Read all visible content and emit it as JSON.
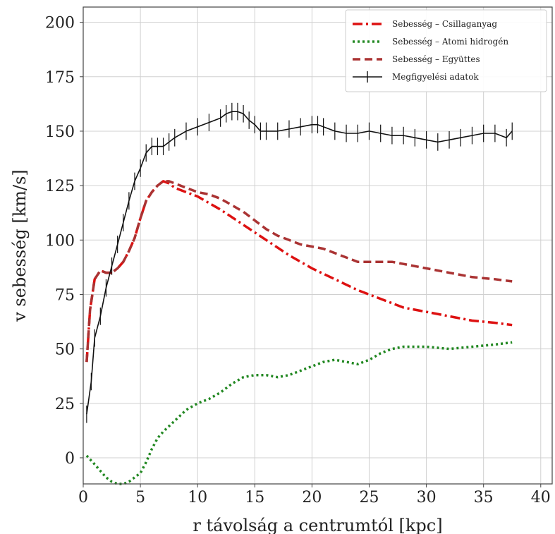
{
  "chart_data": {
    "type": "line",
    "title": "",
    "xlabel": "r távolság a centrumtól [kpc]",
    "ylabel": "v sebesség [km/s]",
    "xlim": [
      0,
      41
    ],
    "ylim": [
      -12,
      207
    ],
    "xticks": [
      0,
      5,
      10,
      15,
      20,
      25,
      30,
      35,
      40
    ],
    "yticks": [
      0,
      25,
      50,
      75,
      100,
      125,
      150,
      175,
      200
    ],
    "grid": true,
    "legend_position": "top-right",
    "series": [
      {
        "name": "Sebesség – Csillaganyag",
        "color": "#dd1111",
        "style": "dashdot",
        "x": [
          0.3,
          0.6,
          1.0,
          1.5,
          2.0,
          2.5,
          3.0,
          3.5,
          4.0,
          4.5,
          5.0,
          5.5,
          6.0,
          6.5,
          7.0,
          7.5,
          8.0,
          9.0,
          10.0,
          11.0,
          12.0,
          14.0,
          16.0,
          18.0,
          20.0,
          22.0,
          24.0,
          26.0,
          28.0,
          30.0,
          32.0,
          34.0,
          36.0,
          37.5
        ],
        "y": [
          44,
          68,
          82,
          86,
          85,
          85,
          87,
          90,
          95,
          101,
          110,
          118,
          122,
          125,
          127,
          126,
          124,
          122,
          120,
          117,
          114,
          107,
          100,
          93,
          87,
          82,
          77,
          73,
          69,
          67,
          65,
          63,
          62,
          61
        ]
      },
      {
        "name": "Sebesség – Atomi hidrogén",
        "color": "#228822",
        "style": "dotted",
        "x": [
          0.3,
          1.0,
          1.5,
          2.0,
          2.5,
          3.0,
          3.5,
          4.0,
          4.5,
          5.0,
          5.5,
          6.0,
          6.5,
          7.0,
          8.0,
          9.0,
          10.0,
          11.0,
          12.0,
          13.0,
          14.0,
          15.0,
          16.0,
          17.0,
          18.0,
          19.0,
          20.0,
          21.0,
          22.0,
          23.0,
          24.0,
          25.0,
          26.0,
          27.0,
          28.0,
          30.0,
          32.0,
          34.0,
          36.0,
          37.5
        ],
        "y": [
          1,
          -3,
          -6,
          -9,
          -11,
          -12,
          -12,
          -11,
          -9,
          -7,
          -2,
          4,
          9,
          12,
          17,
          22,
          25,
          27,
          30,
          34,
          37,
          38,
          38,
          37,
          38,
          40,
          42,
          44,
          45,
          44,
          43,
          45,
          48,
          50,
          51,
          51,
          50,
          51,
          52,
          53
        ]
      },
      {
        "name": "Sebesség – Együttes",
        "color": "#aa3333",
        "style": "dashed",
        "x": [
          0.3,
          0.6,
          1.0,
          1.5,
          2.0,
          2.5,
          3.0,
          3.5,
          4.0,
          4.5,
          5.0,
          5.5,
          6.0,
          6.5,
          7.0,
          7.5,
          8.0,
          9.0,
          10.0,
          11.0,
          12.0,
          13.0,
          14.0,
          15.0,
          16.0,
          17.0,
          18.0,
          19.0,
          20.0,
          21.0,
          22.0,
          23.0,
          24.0,
          25.0,
          26.0,
          27.0,
          28.0,
          30.0,
          32.0,
          34.0,
          36.0,
          37.5
        ],
        "y": [
          44,
          68,
          82,
          86,
          85,
          85,
          87,
          90,
          95,
          101,
          110,
          118,
          122,
          125,
          127,
          127,
          126,
          124,
          122,
          121,
          119,
          116,
          113,
          109,
          105,
          102,
          100,
          98,
          97,
          96,
          94,
          92,
          90,
          90,
          90,
          90,
          89,
          87,
          85,
          83,
          82,
          81
        ]
      },
      {
        "name": "Megfigyelési adatok",
        "color": "#111111",
        "style": "solid-errorbars",
        "error": 4,
        "x": [
          0.3,
          0.7,
          1.0,
          1.5,
          2.0,
          2.5,
          3.0,
          3.5,
          4.0,
          4.5,
          5.0,
          5.5,
          6.0,
          6.5,
          7.0,
          7.5,
          8.0,
          9.0,
          10.0,
          11.0,
          12.0,
          12.5,
          13.0,
          13.5,
          14.0,
          14.5,
          15.0,
          15.5,
          16.0,
          17.0,
          18.0,
          19.0,
          20.0,
          20.5,
          21.0,
          22.0,
          23.0,
          24.0,
          25.0,
          26.0,
          27.0,
          28.0,
          29.0,
          30.0,
          31.0,
          32.0,
          33.0,
          34.0,
          35.0,
          36.0,
          37.0,
          37.5
        ],
        "y": [
          20,
          35,
          55,
          65,
          78,
          88,
          98,
          108,
          118,
          127,
          133,
          140,
          143,
          143,
          143,
          145,
          147,
          150,
          152,
          154,
          156,
          158,
          159,
          159,
          158,
          155,
          153,
          150,
          150,
          150,
          151,
          152,
          153,
          153,
          152,
          150,
          149,
          149,
          150,
          149,
          148,
          148,
          147,
          146,
          145,
          146,
          147,
          148,
          149,
          149,
          147,
          150
        ]
      }
    ]
  }
}
